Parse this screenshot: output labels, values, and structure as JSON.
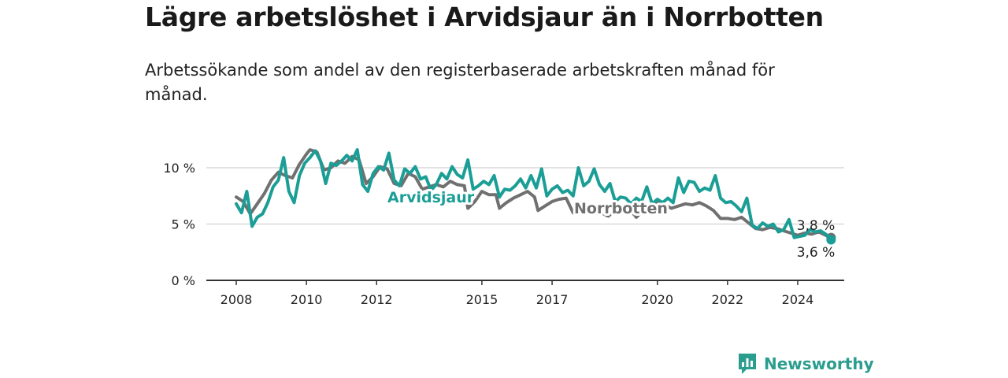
{
  "title": "Lägre arbetslöshet i Arvidsjaur än i Norrbotten",
  "subtitle": "Arbetssökande som andel av den registerbaserade arbetskraften månad för månad.",
  "brand": {
    "name": "Newsworthy",
    "color": "#2a9d8f",
    "icon": "bar-chart-speech-icon"
  },
  "chart_data": {
    "type": "line",
    "title": "Lägre arbetslöshet i Arvidsjaur än i Norrbotten",
    "subtitle": "Arbetssökande som andel av den registerbaserade arbetskraften månad för månad.",
    "x_ticks": [
      "2008",
      "2010",
      "2012",
      "2015",
      "2017",
      "2020",
      "2022",
      "2024"
    ],
    "y_ticks": [
      "0 %",
      "5 %",
      "10 %"
    ],
    "ylim": [
      0,
      12.5
    ],
    "xlim": [
      2007.8,
      2025.2
    ],
    "grid": true,
    "legend": "inline labels",
    "end_labels": [
      "3,8 %",
      "3,6 %"
    ],
    "series": [
      {
        "name": "Arvidsjaur",
        "color": "#1a9e96",
        "points": [
          [
            2008.0,
            6.8
          ],
          [
            2008.15,
            6.0
          ],
          [
            2008.3,
            7.9
          ],
          [
            2008.45,
            4.8
          ],
          [
            2008.6,
            5.6
          ],
          [
            2008.75,
            5.9
          ],
          [
            2008.9,
            6.9
          ],
          [
            2009.05,
            8.3
          ],
          [
            2009.2,
            8.9
          ],
          [
            2009.35,
            10.9
          ],
          [
            2009.5,
            7.9
          ],
          [
            2009.65,
            6.9
          ],
          [
            2009.8,
            9.3
          ],
          [
            2009.95,
            10.4
          ],
          [
            2010.1,
            10.9
          ],
          [
            2010.25,
            11.5
          ],
          [
            2010.4,
            10.6
          ],
          [
            2010.55,
            8.6
          ],
          [
            2010.7,
            10.4
          ],
          [
            2010.85,
            10.2
          ],
          [
            2011.0,
            10.6
          ],
          [
            2011.15,
            11.1
          ],
          [
            2011.3,
            10.6
          ],
          [
            2011.45,
            11.6
          ],
          [
            2011.6,
            8.5
          ],
          [
            2011.75,
            7.9
          ],
          [
            2011.9,
            9.5
          ],
          [
            2012.05,
            10.1
          ],
          [
            2012.2,
            9.8
          ],
          [
            2012.35,
            11.3
          ],
          [
            2012.5,
            8.9
          ],
          [
            2012.65,
            8.4
          ],
          [
            2012.8,
            9.9
          ],
          [
            2012.95,
            9.5
          ],
          [
            2013.1,
            10.1
          ],
          [
            2013.25,
            9.0
          ],
          [
            2013.4,
            9.2
          ],
          [
            2013.55,
            8.0
          ],
          [
            2013.7,
            8.5
          ],
          [
            2013.85,
            9.5
          ],
          [
            2014.0,
            9.0
          ],
          [
            2014.15,
            10.1
          ],
          [
            2014.3,
            9.4
          ],
          [
            2014.45,
            9.1
          ],
          [
            2014.6,
            10.7
          ],
          [
            2014.75,
            8.1
          ],
          [
            2014.9,
            8.4
          ],
          [
            2015.05,
            8.8
          ],
          [
            2015.2,
            8.5
          ],
          [
            2015.35,
            9.3
          ],
          [
            2015.5,
            7.4
          ],
          [
            2015.65,
            8.1
          ],
          [
            2015.8,
            8.0
          ],
          [
            2015.95,
            8.4
          ],
          [
            2016.1,
            9.0
          ],
          [
            2016.25,
            8.2
          ],
          [
            2016.4,
            9.3
          ],
          [
            2016.55,
            8.2
          ],
          [
            2016.7,
            9.9
          ],
          [
            2016.85,
            7.5
          ],
          [
            2017.0,
            8.1
          ],
          [
            2017.15,
            8.4
          ],
          [
            2017.3,
            7.8
          ],
          [
            2017.45,
            8.0
          ],
          [
            2017.6,
            7.5
          ],
          [
            2017.75,
            10.0
          ],
          [
            2017.9,
            8.4
          ],
          [
            2018.05,
            8.8
          ],
          [
            2018.2,
            9.9
          ],
          [
            2018.35,
            8.5
          ],
          [
            2018.5,
            7.9
          ],
          [
            2018.65,
            8.6
          ],
          [
            2018.8,
            7.0
          ],
          [
            2018.95,
            7.4
          ],
          [
            2019.1,
            7.3
          ],
          [
            2019.25,
            6.8
          ],
          [
            2019.4,
            7.3
          ],
          [
            2019.55,
            7.0
          ],
          [
            2019.7,
            8.3
          ],
          [
            2019.85,
            6.8
          ],
          [
            2020.0,
            7.2
          ],
          [
            2020.15,
            6.9
          ],
          [
            2020.3,
            7.3
          ],
          [
            2020.45,
            6.9
          ],
          [
            2020.6,
            9.1
          ],
          [
            2020.75,
            7.8
          ],
          [
            2020.9,
            8.8
          ],
          [
            2021.05,
            8.7
          ],
          [
            2021.2,
            7.9
          ],
          [
            2021.35,
            8.2
          ],
          [
            2021.5,
            8.0
          ],
          [
            2021.65,
            9.3
          ],
          [
            2021.8,
            7.3
          ],
          [
            2021.95,
            6.9
          ],
          [
            2022.1,
            7.0
          ],
          [
            2022.25,
            6.6
          ],
          [
            2022.4,
            6.1
          ],
          [
            2022.55,
            7.3
          ],
          [
            2022.7,
            4.9
          ],
          [
            2022.85,
            4.6
          ],
          [
            2023.0,
            5.1
          ],
          [
            2023.15,
            4.8
          ],
          [
            2023.3,
            5.0
          ],
          [
            2023.45,
            4.3
          ],
          [
            2023.6,
            4.5
          ],
          [
            2023.75,
            5.4
          ],
          [
            2023.9,
            3.8
          ],
          [
            2024.05,
            3.9
          ],
          [
            2024.2,
            4.0
          ],
          [
            2024.35,
            4.5
          ],
          [
            2024.5,
            4.3
          ],
          [
            2024.65,
            4.4
          ],
          [
            2024.8,
            4.1
          ],
          [
            2024.95,
            3.6
          ]
        ]
      },
      {
        "name": "Norrbotten",
        "color": "#707070",
        "points": [
          [
            2008.0,
            7.4
          ],
          [
            2008.2,
            7.0
          ],
          [
            2008.4,
            5.9
          ],
          [
            2008.6,
            6.8
          ],
          [
            2008.8,
            7.7
          ],
          [
            2009.0,
            8.9
          ],
          [
            2009.2,
            9.6
          ],
          [
            2009.4,
            9.3
          ],
          [
            2009.6,
            9.1
          ],
          [
            2009.8,
            10.3
          ],
          [
            2010.0,
            11.2
          ],
          [
            2010.1,
            11.6
          ],
          [
            2010.3,
            11.4
          ],
          [
            2010.5,
            9.8
          ],
          [
            2010.7,
            10.0
          ],
          [
            2010.9,
            10.6
          ],
          [
            2011.1,
            10.4
          ],
          [
            2011.3,
            11.0
          ],
          [
            2011.5,
            10.7
          ],
          [
            2011.7,
            8.6
          ],
          [
            2011.9,
            9.2
          ],
          [
            2012.1,
            10.1
          ],
          [
            2012.3,
            9.9
          ],
          [
            2012.5,
            8.6
          ],
          [
            2012.7,
            8.4
          ],
          [
            2012.9,
            9.5
          ],
          [
            2013.1,
            9.2
          ],
          [
            2013.3,
            8.1
          ],
          [
            2013.5,
            8.3
          ],
          [
            2013.7,
            8.5
          ],
          [
            2013.9,
            8.3
          ],
          [
            2014.1,
            8.8
          ],
          [
            2014.3,
            8.5
          ],
          [
            2014.5,
            8.4
          ],
          [
            2014.6,
            6.4
          ],
          [
            2014.8,
            7.0
          ],
          [
            2015.0,
            7.9
          ],
          [
            2015.2,
            7.6
          ],
          [
            2015.4,
            7.6
          ],
          [
            2015.5,
            6.4
          ],
          [
            2015.7,
            6.9
          ],
          [
            2015.9,
            7.3
          ],
          [
            2016.1,
            7.6
          ],
          [
            2016.3,
            7.9
          ],
          [
            2016.5,
            7.4
          ],
          [
            2016.6,
            6.2
          ],
          [
            2016.8,
            6.6
          ],
          [
            2017.0,
            7.0
          ],
          [
            2017.2,
            7.2
          ],
          [
            2017.4,
            7.3
          ],
          [
            2017.6,
            6.0
          ],
          [
            2017.8,
            6.5
          ],
          [
            2018.0,
            6.5
          ],
          [
            2018.2,
            6.6
          ],
          [
            2018.4,
            6.0
          ],
          [
            2018.6,
            5.7
          ],
          [
            2018.8,
            6.2
          ],
          [
            2019.0,
            6.2
          ],
          [
            2019.2,
            6.4
          ],
          [
            2019.4,
            5.6
          ],
          [
            2019.6,
            6.2
          ],
          [
            2019.8,
            6.3
          ],
          [
            2020.0,
            6.9
          ],
          [
            2020.2,
            6.7
          ],
          [
            2020.4,
            6.4
          ],
          [
            2020.6,
            6.6
          ],
          [
            2020.8,
            6.8
          ],
          [
            2021.0,
            6.7
          ],
          [
            2021.2,
            6.9
          ],
          [
            2021.4,
            6.6
          ],
          [
            2021.6,
            6.2
          ],
          [
            2021.8,
            5.5
          ],
          [
            2022.0,
            5.5
          ],
          [
            2022.2,
            5.4
          ],
          [
            2022.4,
            5.6
          ],
          [
            2022.6,
            5.1
          ],
          [
            2022.8,
            4.6
          ],
          [
            2023.0,
            4.5
          ],
          [
            2023.2,
            4.7
          ],
          [
            2023.4,
            4.6
          ],
          [
            2023.6,
            4.4
          ],
          [
            2023.8,
            4.2
          ],
          [
            2024.0,
            4.0
          ],
          [
            2024.2,
            4.2
          ],
          [
            2024.4,
            4.1
          ],
          [
            2024.6,
            4.3
          ],
          [
            2024.8,
            4.0
          ],
          [
            2024.95,
            3.8
          ]
        ]
      }
    ]
  }
}
